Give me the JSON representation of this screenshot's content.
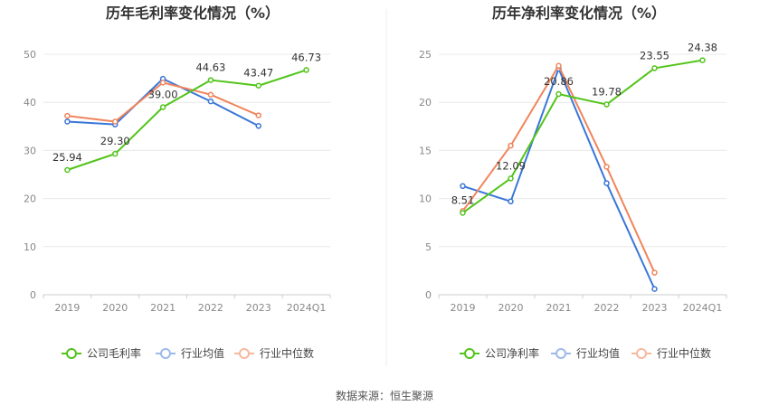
{
  "source": "数据来源：恒生聚源",
  "chart_data": [
    {
      "type": "line",
      "title": "历年毛利率变化情况（%）",
      "categories": [
        "2019",
        "2020",
        "2021",
        "2022",
        "2023",
        "2024Q1"
      ],
      "ylim": [
        0,
        50
      ],
      "yticks": [
        "0",
        "10",
        "20",
        "30",
        "40",
        "50"
      ],
      "grid": true,
      "legend": "bottom",
      "series": [
        {
          "name": "公司毛利率",
          "color": "#52c41a",
          "values": [
            25.94,
            29.3,
            39.0,
            44.63,
            43.47,
            46.73
          ],
          "labels": [
            "25.94",
            "29.30",
            "39.00",
            "44.63",
            "43.47",
            "46.73"
          ]
        },
        {
          "name": "行业均值",
          "color": "#3a76d8",
          "values": [
            36.0,
            35.4,
            44.9,
            40.2,
            35.1,
            null
          ]
        },
        {
          "name": "行业中位数",
          "color": "#f0845b",
          "values": [
            37.2,
            36.0,
            44.1,
            41.6,
            37.3,
            null
          ]
        }
      ]
    },
    {
      "type": "line",
      "title": "历年净利率变化情况（%）",
      "categories": [
        "2019",
        "2020",
        "2021",
        "2022",
        "2023",
        "2024Q1"
      ],
      "ylim": [
        0,
        25
      ],
      "yticks": [
        "0",
        "5",
        "10",
        "15",
        "20",
        "25"
      ],
      "grid": true,
      "legend": "bottom",
      "series": [
        {
          "name": "公司净利率",
          "color": "#52c41a",
          "values": [
            8.51,
            12.09,
            20.86,
            19.78,
            23.55,
            24.38
          ],
          "labels": [
            "8.51",
            "12.09",
            "20.86",
            "19.78",
            "23.55",
            "24.38"
          ]
        },
        {
          "name": "行业均值",
          "color": "#3a76d8",
          "values": [
            11.3,
            9.7,
            23.5,
            11.6,
            0.6,
            null
          ]
        },
        {
          "name": "行业中位数",
          "color": "#f0845b",
          "values": [
            8.7,
            15.5,
            23.8,
            13.3,
            2.3,
            null
          ]
        }
      ]
    }
  ]
}
